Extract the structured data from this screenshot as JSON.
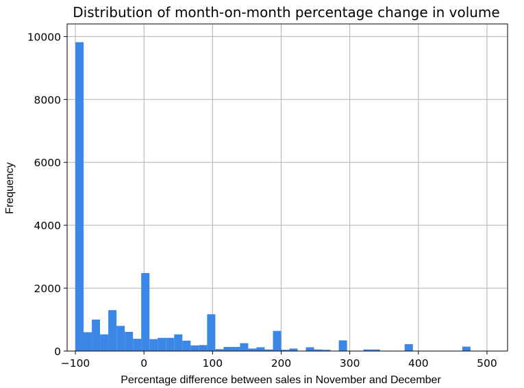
{
  "chart_data": {
    "type": "bar",
    "title": "Distribution of month-on-month percentage change in volume",
    "xlabel": "Percentage difference between sales in November and December",
    "ylabel": "Frequency",
    "xlim": [
      -112,
      530
    ],
    "ylim": [
      0,
      10400
    ],
    "xticks": [
      -100,
      0,
      100,
      200,
      300,
      400,
      500
    ],
    "xtick_labels": [
      "−100",
      "0",
      "100",
      "200",
      "300",
      "400",
      "500"
    ],
    "yticks": [
      0,
      2000,
      4000,
      6000,
      8000,
      10000
    ],
    "ytick_labels": [
      "0",
      "2000",
      "4000",
      "6000",
      "8000",
      "10000"
    ],
    "grid": true,
    "bar_color": "#3b87e8",
    "bin_start": -100,
    "bin_width": 12,
    "values": [
      9820,
      600,
      1000,
      530,
      1300,
      800,
      610,
      390,
      2480,
      380,
      420,
      420,
      530,
      330,
      180,
      190,
      1170,
      60,
      130,
      130,
      250,
      80,
      120,
      50,
      640,
      40,
      80,
      10,
      120,
      50,
      40,
      0,
      340,
      10,
      0,
      50,
      50,
      0,
      0,
      0,
      220,
      10,
      0,
      0,
      0,
      0,
      0,
      140
    ]
  }
}
